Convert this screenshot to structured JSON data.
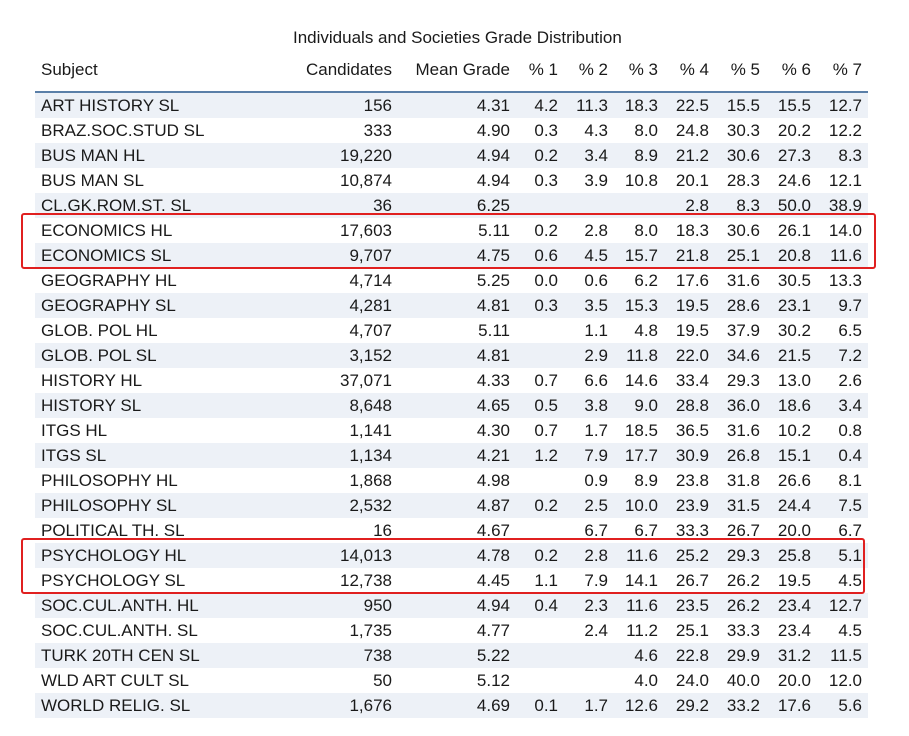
{
  "chart_data": {
    "type": "table",
    "title": "Individuals and Societies Grade Distribution",
    "columns": [
      "Subject",
      "Candidates",
      "Mean Grade",
      "% 1",
      "% 2",
      "% 3",
      "% 4",
      "% 5",
      "% 6",
      "% 7"
    ],
    "rows": [
      [
        "ART HISTORY SL",
        "156",
        "4.31",
        "4.2",
        "11.3",
        "18.3",
        "22.5",
        "15.5",
        "15.5",
        "12.7"
      ],
      [
        "BRAZ.SOC.STUD SL",
        "333",
        "4.90",
        "0.3",
        "4.3",
        "8.0",
        "24.8",
        "30.3",
        "20.2",
        "12.2"
      ],
      [
        "BUS MAN HL",
        "19,220",
        "4.94",
        "0.2",
        "3.4",
        "8.9",
        "21.2",
        "30.6",
        "27.3",
        "8.3"
      ],
      [
        "BUS MAN SL",
        "10,874",
        "4.94",
        "0.3",
        "3.9",
        "10.8",
        "20.1",
        "28.3",
        "24.6",
        "12.1"
      ],
      [
        "CL.GK.ROM.ST. SL",
        "36",
        "6.25",
        "",
        "",
        "",
        "2.8",
        "8.3",
        "50.0",
        "38.9"
      ],
      [
        "ECONOMICS HL",
        "17,603",
        "5.11",
        "0.2",
        "2.8",
        "8.0",
        "18.3",
        "30.6",
        "26.1",
        "14.0"
      ],
      [
        "ECONOMICS SL",
        "9,707",
        "4.75",
        "0.6",
        "4.5",
        "15.7",
        "21.8",
        "25.1",
        "20.8",
        "11.6"
      ],
      [
        "GEOGRAPHY HL",
        "4,714",
        "5.25",
        "0.0",
        "0.6",
        "6.2",
        "17.6",
        "31.6",
        "30.5",
        "13.3"
      ],
      [
        "GEOGRAPHY SL",
        "4,281",
        "4.81",
        "0.3",
        "3.5",
        "15.3",
        "19.5",
        "28.6",
        "23.1",
        "9.7"
      ],
      [
        "GLOB. POL HL",
        "4,707",
        "5.11",
        "",
        "1.1",
        "4.8",
        "19.5",
        "37.9",
        "30.2",
        "6.5"
      ],
      [
        "GLOB. POL SL",
        "3,152",
        "4.81",
        "",
        "2.9",
        "11.8",
        "22.0",
        "34.6",
        "21.5",
        "7.2"
      ],
      [
        "HISTORY HL",
        "37,071",
        "4.33",
        "0.7",
        "6.6",
        "14.6",
        "33.4",
        "29.3",
        "13.0",
        "2.6"
      ],
      [
        "HISTORY SL",
        "8,648",
        "4.65",
        "0.5",
        "3.8",
        "9.0",
        "28.8",
        "36.0",
        "18.6",
        "3.4"
      ],
      [
        "ITGS HL",
        "1,141",
        "4.30",
        "0.7",
        "1.7",
        "18.5",
        "36.5",
        "31.6",
        "10.2",
        "0.8"
      ],
      [
        "ITGS SL",
        "1,134",
        "4.21",
        "1.2",
        "7.9",
        "17.7",
        "30.9",
        "26.8",
        "15.1",
        "0.4"
      ],
      [
        "PHILOSOPHY HL",
        "1,868",
        "4.98",
        "",
        "0.9",
        "8.9",
        "23.8",
        "31.8",
        "26.6",
        "8.1"
      ],
      [
        "PHILOSOPHY SL",
        "2,532",
        "4.87",
        "0.2",
        "2.5",
        "10.0",
        "23.9",
        "31.5",
        "24.4",
        "7.5"
      ],
      [
        "POLITICAL TH. SL",
        "16",
        "4.67",
        "",
        "6.7",
        "6.7",
        "33.3",
        "26.7",
        "20.0",
        "6.7"
      ],
      [
        "PSYCHOLOGY HL",
        "14,013",
        "4.78",
        "0.2",
        "2.8",
        "11.6",
        "25.2",
        "29.3",
        "25.8",
        "5.1"
      ],
      [
        "PSYCHOLOGY SL",
        "12,738",
        "4.45",
        "1.1",
        "7.9",
        "14.1",
        "26.7",
        "26.2",
        "19.5",
        "4.5"
      ],
      [
        "SOC.CUL.ANTH. HL",
        "950",
        "4.94",
        "0.4",
        "2.3",
        "11.6",
        "23.5",
        "26.2",
        "23.4",
        "12.7"
      ],
      [
        "SOC.CUL.ANTH. SL",
        "1,735",
        "4.77",
        "",
        "2.4",
        "11.2",
        "25.1",
        "33.3",
        "23.4",
        "4.5"
      ],
      [
        "TURK 20TH CEN SL",
        "738",
        "5.22",
        "",
        "",
        "4.6",
        "22.8",
        "29.9",
        "31.2",
        "11.5"
      ],
      [
        "WLD ART CULT SL",
        "50",
        "5.12",
        "",
        "",
        "4.0",
        "24.0",
        "40.0",
        "20.0",
        "12.0"
      ],
      [
        "WORLD RELIG. SL",
        "1,676",
        "4.69",
        "0.1",
        "1.7",
        "12.6",
        "29.2",
        "33.2",
        "17.6",
        "5.6"
      ]
    ],
    "highlighted_rows": [
      "ECONOMICS HL",
      "ECONOMICS SL",
      "PSYCHOLOGY HL",
      "PSYCHOLOGY SL"
    ],
    "highlight_color": "#e02020",
    "stripe_color": "#edf1f7",
    "rule_color": "#5a7fa8"
  }
}
